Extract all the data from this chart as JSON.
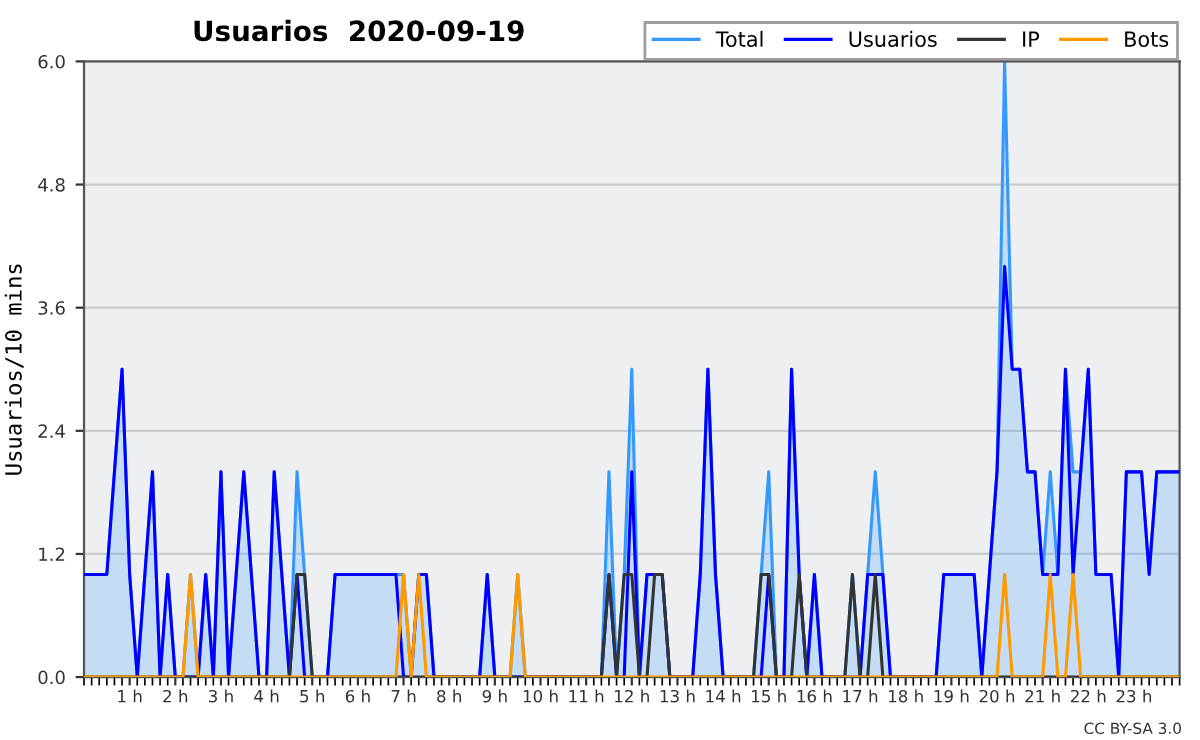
{
  "chart_data": {
    "type": "line",
    "title": "Usuarios  2020-09-19",
    "ylabel": "Usuarios/10 mins",
    "annotations": [
      "CC BY-SA 3.0"
    ],
    "x": [
      0,
      0.1667,
      0.3333,
      0.5,
      0.6667,
      0.8333,
      1,
      1.1667,
      1.3333,
      1.5,
      1.6667,
      1.8333,
      2,
      2.1667,
      2.3333,
      2.5,
      2.6667,
      2.8333,
      3,
      3.1667,
      3.3333,
      3.5,
      3.6667,
      3.8333,
      4,
      4.1667,
      4.3333,
      4.5,
      4.6667,
      4.8333,
      5,
      5.1667,
      5.3333,
      5.5,
      5.6667,
      5.8333,
      6,
      6.1667,
      6.3333,
      6.5,
      6.6667,
      6.8333,
      7,
      7.1667,
      7.3333,
      7.5,
      7.6667,
      7.8333,
      8,
      8.1667,
      8.3333,
      8.5,
      8.6667,
      8.8333,
      9,
      9.1667,
      9.3333,
      9.5,
      9.6667,
      9.8333,
      10,
      10.1667,
      10.3333,
      10.5,
      10.6667,
      10.8333,
      11,
      11.1667,
      11.3333,
      11.5,
      11.6667,
      11.8333,
      12,
      12.1667,
      12.3333,
      12.5,
      12.6667,
      12.8333,
      13,
      13.1667,
      13.3333,
      13.5,
      13.6667,
      13.8333,
      14,
      14.1667,
      14.3333,
      14.5,
      14.6667,
      14.8333,
      15,
      15.1667,
      15.3333,
      15.5,
      15.6667,
      15.8333,
      16,
      16.1667,
      16.3333,
      16.5,
      16.6667,
      16.8333,
      17,
      17.1667,
      17.3333,
      17.5,
      17.6667,
      17.8333,
      18,
      18.1667,
      18.3333,
      18.5,
      18.6667,
      18.8333,
      19,
      19.1667,
      19.3333,
      19.5,
      19.6667,
      19.8333,
      20,
      20.1667,
      20.3333,
      20.5,
      20.6667,
      20.8333,
      21,
      21.1667,
      21.3333,
      21.5,
      21.6667,
      21.8333,
      22,
      22.1667,
      22.3333,
      22.5,
      22.6667,
      22.8333,
      23,
      23.1667,
      23.3333,
      23.5,
      23.6667,
      23.8333,
      24
    ],
    "xlim": [
      0,
      24
    ],
    "xticks": [
      {
        "value": 1,
        "label": "1 h"
      },
      {
        "value": 2,
        "label": "2 h"
      },
      {
        "value": 3,
        "label": "3 h"
      },
      {
        "value": 4,
        "label": "4 h"
      },
      {
        "value": 5,
        "label": "5 h"
      },
      {
        "value": 6,
        "label": "6 h"
      },
      {
        "value": 7,
        "label": "7 h"
      },
      {
        "value": 8,
        "label": "8 h"
      },
      {
        "value": 9,
        "label": "9 h"
      },
      {
        "value": 10,
        "label": "10 h"
      },
      {
        "value": 11,
        "label": "11 h"
      },
      {
        "value": 12,
        "label": "12 h"
      },
      {
        "value": 13,
        "label": "13 h"
      },
      {
        "value": 14,
        "label": "14 h"
      },
      {
        "value": 15,
        "label": "15 h"
      },
      {
        "value": 16,
        "label": "16 h"
      },
      {
        "value": 17,
        "label": "17 h"
      },
      {
        "value": 18,
        "label": "18 h"
      },
      {
        "value": 19,
        "label": "19 h"
      },
      {
        "value": 20,
        "label": "20 h"
      },
      {
        "value": 21,
        "label": "21 h"
      },
      {
        "value": 22,
        "label": "22 h"
      },
      {
        "value": 23,
        "label": "23 h"
      }
    ],
    "ylim": [
      0,
      6
    ],
    "yticks": [
      {
        "value": 0,
        "label": "0.0"
      },
      1.2,
      2.4,
      3.6,
      4.8,
      {
        "value": 6,
        "label": "6.0"
      }
    ],
    "grid": "y",
    "legend": "top right",
    "series": [
      {
        "name": "Total",
        "type": "area",
        "color": "#3399ff",
        "values": [
          1,
          1,
          1,
          1,
          2,
          3,
          1,
          0,
          1,
          2,
          0,
          1,
          0,
          0,
          1,
          0,
          1,
          0,
          2,
          0,
          1,
          2,
          1,
          0,
          0,
          2,
          1,
          0,
          2,
          1,
          0,
          0,
          0,
          1,
          1,
          1,
          1,
          1,
          1,
          1,
          1,
          1,
          1,
          0,
          1,
          1,
          0,
          0,
          0,
          0,
          0,
          0,
          0,
          1,
          0,
          0,
          0,
          1,
          0,
          0,
          0,
          0,
          0,
          0,
          0,
          0,
          0,
          0,
          0,
          2,
          0,
          1,
          3,
          0,
          1,
          1,
          1,
          0,
          0,
          0,
          0,
          1,
          3,
          1,
          0,
          0,
          0,
          0,
          0,
          1,
          2,
          0,
          0,
          3,
          1,
          0,
          1,
          0,
          0,
          0,
          0,
          1,
          0,
          1,
          2,
          1,
          0,
          0,
          0,
          0,
          0,
          0,
          0,
          1,
          1,
          1,
          1,
          1,
          0,
          1,
          2,
          6,
          3,
          3,
          2,
          2,
          1,
          2,
          1,
          3,
          2,
          2,
          3,
          1,
          1,
          1,
          0,
          2,
          2,
          2,
          1,
          2,
          2,
          2,
          2
        ]
      },
      {
        "name": "Usuarios",
        "color": "#0000ff",
        "values": [
          1,
          1,
          1,
          1,
          2,
          3,
          1,
          0,
          1,
          2,
          0,
          1,
          0,
          0,
          0,
          0,
          1,
          0,
          2,
          0,
          1,
          2,
          1,
          0,
          0,
          2,
          1,
          0,
          1,
          0,
          0,
          0,
          0,
          1,
          1,
          1,
          1,
          1,
          1,
          1,
          1,
          1,
          0,
          0,
          1,
          1,
          0,
          0,
          0,
          0,
          0,
          0,
          0,
          1,
          0,
          0,
          0,
          0,
          0,
          0,
          0,
          0,
          0,
          0,
          0,
          0,
          0,
          0,
          0,
          1,
          0,
          0,
          2,
          0,
          1,
          1,
          1,
          0,
          0,
          0,
          0,
          1,
          3,
          1,
          0,
          0,
          0,
          0,
          0,
          0,
          1,
          0,
          0,
          3,
          1,
          0,
          1,
          0,
          0,
          0,
          0,
          0,
          0,
          1,
          1,
          1,
          0,
          0,
          0,
          0,
          0,
          0,
          0,
          1,
          1,
          1,
          1,
          1,
          0,
          1,
          2,
          4,
          3,
          3,
          2,
          2,
          1,
          1,
          1,
          3,
          1,
          2,
          3,
          1,
          1,
          1,
          0,
          2,
          2,
          2,
          1,
          2,
          2,
          2,
          2
        ]
      },
      {
        "name": "IP",
        "color": "#333333",
        "values": [
          0,
          0,
          0,
          0,
          0,
          0,
          0,
          0,
          0,
          0,
          0,
          0,
          0,
          0,
          0,
          0,
          0,
          0,
          0,
          0,
          0,
          0,
          0,
          0,
          0,
          0,
          0,
          0,
          1,
          1,
          0,
          0,
          0,
          0,
          0,
          0,
          0,
          0,
          0,
          0,
          0,
          0,
          0,
          0,
          0,
          0,
          0,
          0,
          0,
          0,
          0,
          0,
          0,
          0,
          0,
          0,
          0,
          0,
          0,
          0,
          0,
          0,
          0,
          0,
          0,
          0,
          0,
          0,
          0,
          1,
          0,
          1,
          1,
          0,
          0,
          1,
          1,
          0,
          0,
          0,
          0,
          0,
          0,
          0,
          0,
          0,
          0,
          0,
          0,
          1,
          1,
          0,
          0,
          0,
          1,
          0,
          0,
          0,
          0,
          0,
          0,
          1,
          0,
          0,
          1,
          0,
          0,
          0,
          0,
          0,
          0,
          0,
          0,
          0,
          0,
          0,
          0,
          0,
          0,
          0,
          0,
          0,
          0,
          0,
          0,
          0,
          0,
          0,
          0,
          0,
          0,
          0,
          0,
          0,
          0,
          0,
          0,
          0,
          0,
          0,
          0,
          0,
          0,
          0,
          0
        ]
      },
      {
        "name": "Bots",
        "color": "#ff9900",
        "values": [
          0,
          0,
          0,
          0,
          0,
          0,
          0,
          0,
          0,
          0,
          0,
          0,
          0,
          0,
          1,
          0,
          0,
          0,
          0,
          0,
          0,
          0,
          0,
          0,
          0,
          0,
          0,
          0,
          0,
          0,
          0,
          0,
          0,
          0,
          0,
          0,
          0,
          0,
          0,
          0,
          0,
          0,
          1,
          0,
          1,
          0,
          0,
          0,
          0,
          0,
          0,
          0,
          0,
          0,
          0,
          0,
          0,
          1,
          0,
          0,
          0,
          0,
          0,
          0,
          0,
          0,
          0,
          0,
          0,
          0,
          0,
          0,
          0,
          0,
          0,
          0,
          0,
          0,
          0,
          0,
          0,
          0,
          0,
          0,
          0,
          0,
          0,
          0,
          0,
          0,
          0,
          0,
          0,
          0,
          0,
          0,
          0,
          0,
          0,
          0,
          0,
          0,
          0,
          0,
          0,
          0,
          0,
          0,
          0,
          0,
          0,
          0,
          0,
          0,
          0,
          0,
          0,
          0,
          0,
          0,
          0,
          1,
          0,
          0,
          0,
          0,
          0,
          1,
          0,
          0,
          1,
          0,
          0,
          0,
          0,
          0,
          0,
          0,
          0,
          0,
          0,
          0,
          0,
          0,
          0
        ]
      }
    ]
  }
}
